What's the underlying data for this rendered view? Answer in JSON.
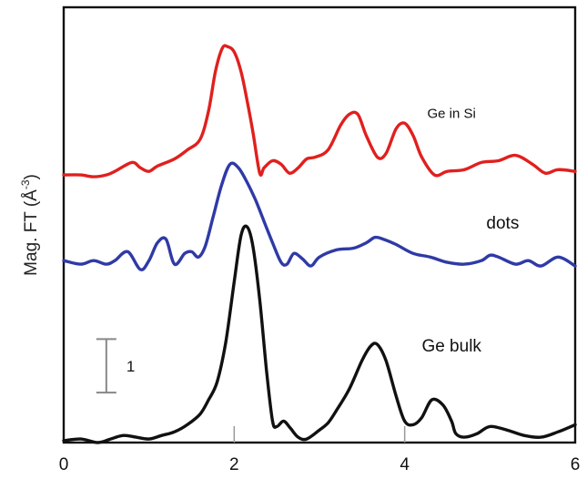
{
  "chart_data": {
    "type": "line",
    "title": "",
    "xlabel": "",
    "ylabel": "Mag. FT (Å",
    "ylabel_superscript": "-3",
    "ylabel_close": ")",
    "xlim": [
      0,
      6
    ],
    "ylim": [
      0,
      12.2
    ],
    "grid": false,
    "legend": "none",
    "x_ticks": [
      0,
      2,
      4,
      6
    ],
    "x_tick_labels": [
      "0",
      "2",
      "4",
      "6"
    ],
    "scale_bar": {
      "label": "1",
      "x": 0.5,
      "y_from": 1.4,
      "y_to": 2.9
    },
    "series": [
      {
        "name": "Ge in Si",
        "color": "#e0201e",
        "label_at": [
          4.55,
          9.1
        ],
        "label_size": 15,
        "x": [
          0,
          0.2,
          0.35,
          0.5,
          0.6,
          0.8,
          0.9,
          1.0,
          1.1,
          1.3,
          1.45,
          1.6,
          1.7,
          1.78,
          1.86,
          1.92,
          2.0,
          2.08,
          2.15,
          2.22,
          2.3,
          2.35,
          2.45,
          2.55,
          2.65,
          2.75,
          2.85,
          2.95,
          3.1,
          3.25,
          3.35,
          3.45,
          3.55,
          3.68,
          3.78,
          3.9,
          4.0,
          4.1,
          4.2,
          4.35,
          4.5,
          4.7,
          4.9,
          5.1,
          5.3,
          5.5,
          5.65,
          5.8,
          6.0
        ],
        "y": [
          7.5,
          7.5,
          7.45,
          7.5,
          7.6,
          7.85,
          7.7,
          7.6,
          7.75,
          7.95,
          8.2,
          8.5,
          9.3,
          10.4,
          11.05,
          11.1,
          10.95,
          10.4,
          9.6,
          8.7,
          7.55,
          7.7,
          7.9,
          7.8,
          7.55,
          7.7,
          7.95,
          8.0,
          8.2,
          8.9,
          9.2,
          9.2,
          8.6,
          8.0,
          8.1,
          8.8,
          8.95,
          8.6,
          8.0,
          7.5,
          7.6,
          7.65,
          7.85,
          7.9,
          8.05,
          7.8,
          7.55,
          7.65,
          7.6
        ]
      },
      {
        "name": "dots",
        "color": "#2f3aa6",
        "label_at": [
          5.15,
          6.0
        ],
        "label_size": 19,
        "x": [
          0,
          0.2,
          0.35,
          0.5,
          0.6,
          0.75,
          0.9,
          1.0,
          1.1,
          1.2,
          1.3,
          1.42,
          1.5,
          1.58,
          1.66,
          1.75,
          1.85,
          1.95,
          2.05,
          2.15,
          2.25,
          2.35,
          2.45,
          2.55,
          2.62,
          2.7,
          2.8,
          2.9,
          3.0,
          3.2,
          3.4,
          3.55,
          3.65,
          3.75,
          3.9,
          4.1,
          4.3,
          4.5,
          4.7,
          4.9,
          5.0,
          5.1,
          5.3,
          5.45,
          5.6,
          5.8,
          6.0
        ],
        "y": [
          5.1,
          5.0,
          5.1,
          5.0,
          5.1,
          5.35,
          4.85,
          5.1,
          5.6,
          5.7,
          5.0,
          5.3,
          5.35,
          5.2,
          5.5,
          6.3,
          7.2,
          7.8,
          7.7,
          7.3,
          6.8,
          6.2,
          5.6,
          5.05,
          5.0,
          5.3,
          5.15,
          4.95,
          5.2,
          5.4,
          5.45,
          5.6,
          5.75,
          5.7,
          5.55,
          5.3,
          5.2,
          5.05,
          5.0,
          5.1,
          5.25,
          5.2,
          5.0,
          5.1,
          4.95,
          5.2,
          4.95
        ]
      },
      {
        "name": "Ge bulk",
        "color": "#111111",
        "label_at": [
          4.55,
          2.55
        ],
        "label_size": 19,
        "x": [
          0,
          0.2,
          0.4,
          0.55,
          0.7,
          0.85,
          1.0,
          1.15,
          1.3,
          1.45,
          1.6,
          1.7,
          1.8,
          1.9,
          2.0,
          2.08,
          2.15,
          2.22,
          2.3,
          2.38,
          2.45,
          2.5,
          2.58,
          2.66,
          2.75,
          2.85,
          3.0,
          3.1,
          3.2,
          3.35,
          3.5,
          3.6,
          3.68,
          3.78,
          3.9,
          4.0,
          4.1,
          4.2,
          4.32,
          4.45,
          4.55,
          4.6,
          4.7,
          4.85,
          5.0,
          5.2,
          5.4,
          5.6,
          5.8,
          6.0
        ],
        "y": [
          0.05,
          0.1,
          0.0,
          0.1,
          0.2,
          0.15,
          0.1,
          0.2,
          0.3,
          0.5,
          0.8,
          1.2,
          1.7,
          2.8,
          4.5,
          5.8,
          6.05,
          5.5,
          4.0,
          2.0,
          0.6,
          0.45,
          0.6,
          0.4,
          0.15,
          0.1,
          0.35,
          0.55,
          0.9,
          1.5,
          2.3,
          2.7,
          2.75,
          2.3,
          1.3,
          0.6,
          0.5,
          0.7,
          1.2,
          1.05,
          0.6,
          0.25,
          0.15,
          0.25,
          0.45,
          0.35,
          0.2,
          0.15,
          0.3,
          0.5
        ]
      }
    ]
  }
}
